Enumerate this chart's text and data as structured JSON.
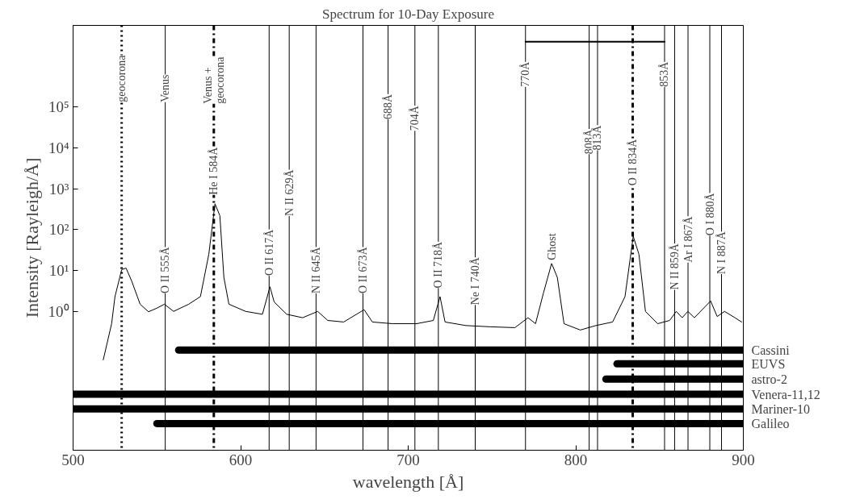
{
  "chart_data": {
    "type": "line",
    "title": "Spectrum for 10-Day Exposure",
    "xlabel": "wavelength [Å]",
    "ylabel": "Intensity [Rayleigh/Å]",
    "log": "y",
    "xlim": [
      500,
      900
    ],
    "ylim": [
      0.0004,
      10000000
    ],
    "xticks": [
      500,
      600,
      700,
      800,
      900
    ],
    "yticks": [
      {
        "value": 1,
        "label": "10⁰"
      },
      {
        "value": 10,
        "label": "10¹"
      },
      {
        "value": 100,
        "label": "10²"
      },
      {
        "value": 1000,
        "label": "10³"
      },
      {
        "value": 10000,
        "label": "10⁴"
      },
      {
        "value": 100000,
        "label": "10⁵"
      }
    ],
    "grid": false,
    "marker": "none",
    "line_style": "solid",
    "series": [
      {
        "color": "#000000",
        "x": [
          518,
          523,
          525,
          529,
          531.6,
          535,
          540,
          545,
          550,
          554.5,
          560,
          569,
          576,
          581,
          584.7,
          587.6,
          590,
          593,
          603,
          613,
          617.5,
          620,
          627.5,
          637,
          646,
          652,
          661.5,
          673.7,
          678.6,
          690.8,
          705,
          715,
          719,
          722,
          734.5,
          749,
          763.7,
          771.5,
          776,
          780.7,
          785.6,
          789,
          793,
          802.7,
          812,
          822,
          829.4,
          834.3,
          837.7,
          841.6,
          848.9,
          856,
          860,
          863.5,
          866.9,
          870.8,
          880.5,
          884.4,
          888.8,
          895,
          899
        ],
        "values": [
          0.065,
          0.5,
          2.3,
          10.5,
          11.5,
          5.5,
          1.5,
          0.98,
          1.2,
          1.5,
          1,
          1.5,
          2.3,
          25,
          430,
          220,
          6.8,
          1.5,
          1,
          0.85,
          4,
          1.7,
          0.85,
          0.7,
          1,
          0.6,
          0.55,
          1.1,
          0.55,
          0.5,
          0.5,
          0.6,
          2.3,
          0.55,
          0.45,
          0.42,
          0.4,
          0.7,
          0.5,
          2.8,
          14.9,
          6.8,
          0.5,
          0.35,
          0.45,
          0.55,
          2.3,
          69,
          25,
          1,
          0.5,
          0.6,
          1,
          0.7,
          1,
          0.7,
          1.8,
          0.75,
          1,
          0.7,
          0.55
        ]
      },
      {
        "color": "#000000",
        "x": [
          770,
          808,
          853
        ],
        "values": [
          4000000,
          4000000,
          4000000
        ]
      },
      {
        "name": "Cassini",
        "color": "#000000",
        "x": [
          563,
          900
        ],
        "values": [
          0.113,
          0.113
        ]
      },
      {
        "name": "EUVS",
        "color": "#000000",
        "x": [
          824.6,
          900
        ],
        "values": [
          0.052,
          0.052
        ]
      },
      {
        "name": "astro-2",
        "color": "#000000",
        "x": [
          818,
          900
        ],
        "values": [
          0.022,
          0.022
        ]
      },
      {
        "name": "Venera-11,12",
        "color": "#000000",
        "x": [
          500,
          900
        ],
        "values": [
          0.0094,
          0.0094
        ]
      },
      {
        "name": "Mariner-10",
        "color": "#000000",
        "x": [
          500,
          900
        ],
        "values": [
          0.0041,
          0.0041
        ]
      },
      {
        "name": "Galileo",
        "color": "#000000",
        "x": [
          550,
          900
        ],
        "values": [
          0.0018,
          0.0018
        ]
      }
    ],
    "ref_lines": [
      {
        "axis": "x",
        "value": 529,
        "line_style": "dotted"
      },
      {
        "axis": "x",
        "value": 555
      },
      {
        "axis": "x",
        "value": 584,
        "line_style": "dashed"
      },
      {
        "axis": "x",
        "value": 617
      },
      {
        "axis": "x",
        "value": 629
      },
      {
        "axis": "x",
        "value": 645
      },
      {
        "axis": "x",
        "value": 673
      },
      {
        "axis": "x",
        "value": 688
      },
      {
        "axis": "x",
        "value": 704
      },
      {
        "axis": "x",
        "value": 718
      },
      {
        "axis": "x",
        "value": 740
      },
      {
        "axis": "x",
        "value": 770
      },
      {
        "axis": "x",
        "value": 808
      },
      {
        "axis": "x",
        "value": 813
      },
      {
        "axis": "x",
        "value": 834,
        "line_style": "dashed"
      },
      {
        "axis": "x",
        "value": 853
      },
      {
        "axis": "x",
        "value": 859
      },
      {
        "axis": "x",
        "value": 867
      },
      {
        "axis": "x",
        "value": 880
      },
      {
        "axis": "x",
        "value": 887
      }
    ],
    "annotations": [
      {
        "text": "geocorona",
        "x": 529,
        "y": 110000
      },
      {
        "text": "Venus",
        "x": 555,
        "y": 110000
      },
      {
        "text": "Venus +\ngeocorona",
        "x": 584,
        "y": 100000
      },
      {
        "text": "He I 584Å",
        "x": 584,
        "y": 590
      },
      {
        "text": "O II 555Å",
        "x": 555,
        "y": 2.3
      },
      {
        "text": "O II 617Å",
        "x": 617,
        "y": 6.2
      },
      {
        "text": "N II 629Å",
        "x": 629,
        "y": 180
      },
      {
        "text": "N II 645Å",
        "x": 645,
        "y": 2.3
      },
      {
        "text": "O II 673Å",
        "x": 673,
        "y": 2.3
      },
      {
        "text": "688Å",
        "x": 688,
        "y": 42000
      },
      {
        "text": "704Å",
        "x": 704,
        "y": 22000
      },
      {
        "text": "O II 718Å",
        "x": 718,
        "y": 3.1
      },
      {
        "text": "Ne I 740Å",
        "x": 740,
        "y": 1.2
      },
      {
        "text": "770Å",
        "x": 770,
        "y": 260000
      },
      {
        "text": "808Å",
        "x": 808,
        "y": 5900
      },
      {
        "text": "813Å",
        "x": 813,
        "y": 7300
      },
      {
        "text": "Ghost",
        "x": 785.6,
        "y": 14.9
      },
      {
        "text": "O II 834Å",
        "x": 834,
        "y": 1000
      },
      {
        "text": "853Å",
        "x": 853,
        "y": 260000
      },
      {
        "text": "N II 859Å",
        "x": 859,
        "y": 2.8
      },
      {
        "text": "Ar I 867Å",
        "x": 867,
        "y": 13
      },
      {
        "text": "O I 880Å",
        "x": 880,
        "y": 60
      },
      {
        "text": "N I 887Å",
        "x": 887,
        "y": 6.8
      }
    ]
  }
}
